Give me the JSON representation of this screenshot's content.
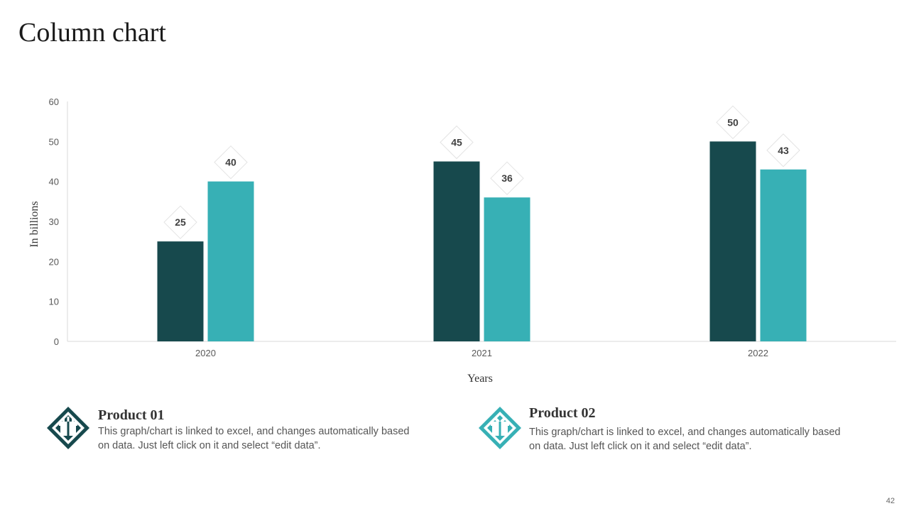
{
  "slide": {
    "title": "Column chart",
    "page_number": "42"
  },
  "chart_data": {
    "type": "bar",
    "categories": [
      "2020",
      "2021",
      "2022"
    ],
    "series": [
      {
        "name": "Product 01",
        "values": [
          25,
          45,
          50
        ],
        "color": "#17494d"
      },
      {
        "name": "Product 02",
        "values": [
          40,
          36,
          43
        ],
        "color": "#37b0b5"
      }
    ],
    "xlabel": "Years",
    "ylabel": "In billions",
    "ylim": [
      0,
      60
    ],
    "yticks": [
      0,
      10,
      20,
      30,
      40,
      50,
      60
    ],
    "grid": false,
    "data_labels": true
  },
  "legend": [
    {
      "title": "Product 01",
      "description": "This graph/chart is linked to excel, and changes automatically based on data. Just left click on it and select “edit data”.",
      "color": "#17494d",
      "icon": "gift-box-icon"
    },
    {
      "title": "Product 02",
      "description": "This graph/chart is linked to excel, and changes automatically based on data. Just left click on it and select “edit data”.",
      "color": "#37b0b5",
      "icon": "gift-box-icon"
    }
  ]
}
